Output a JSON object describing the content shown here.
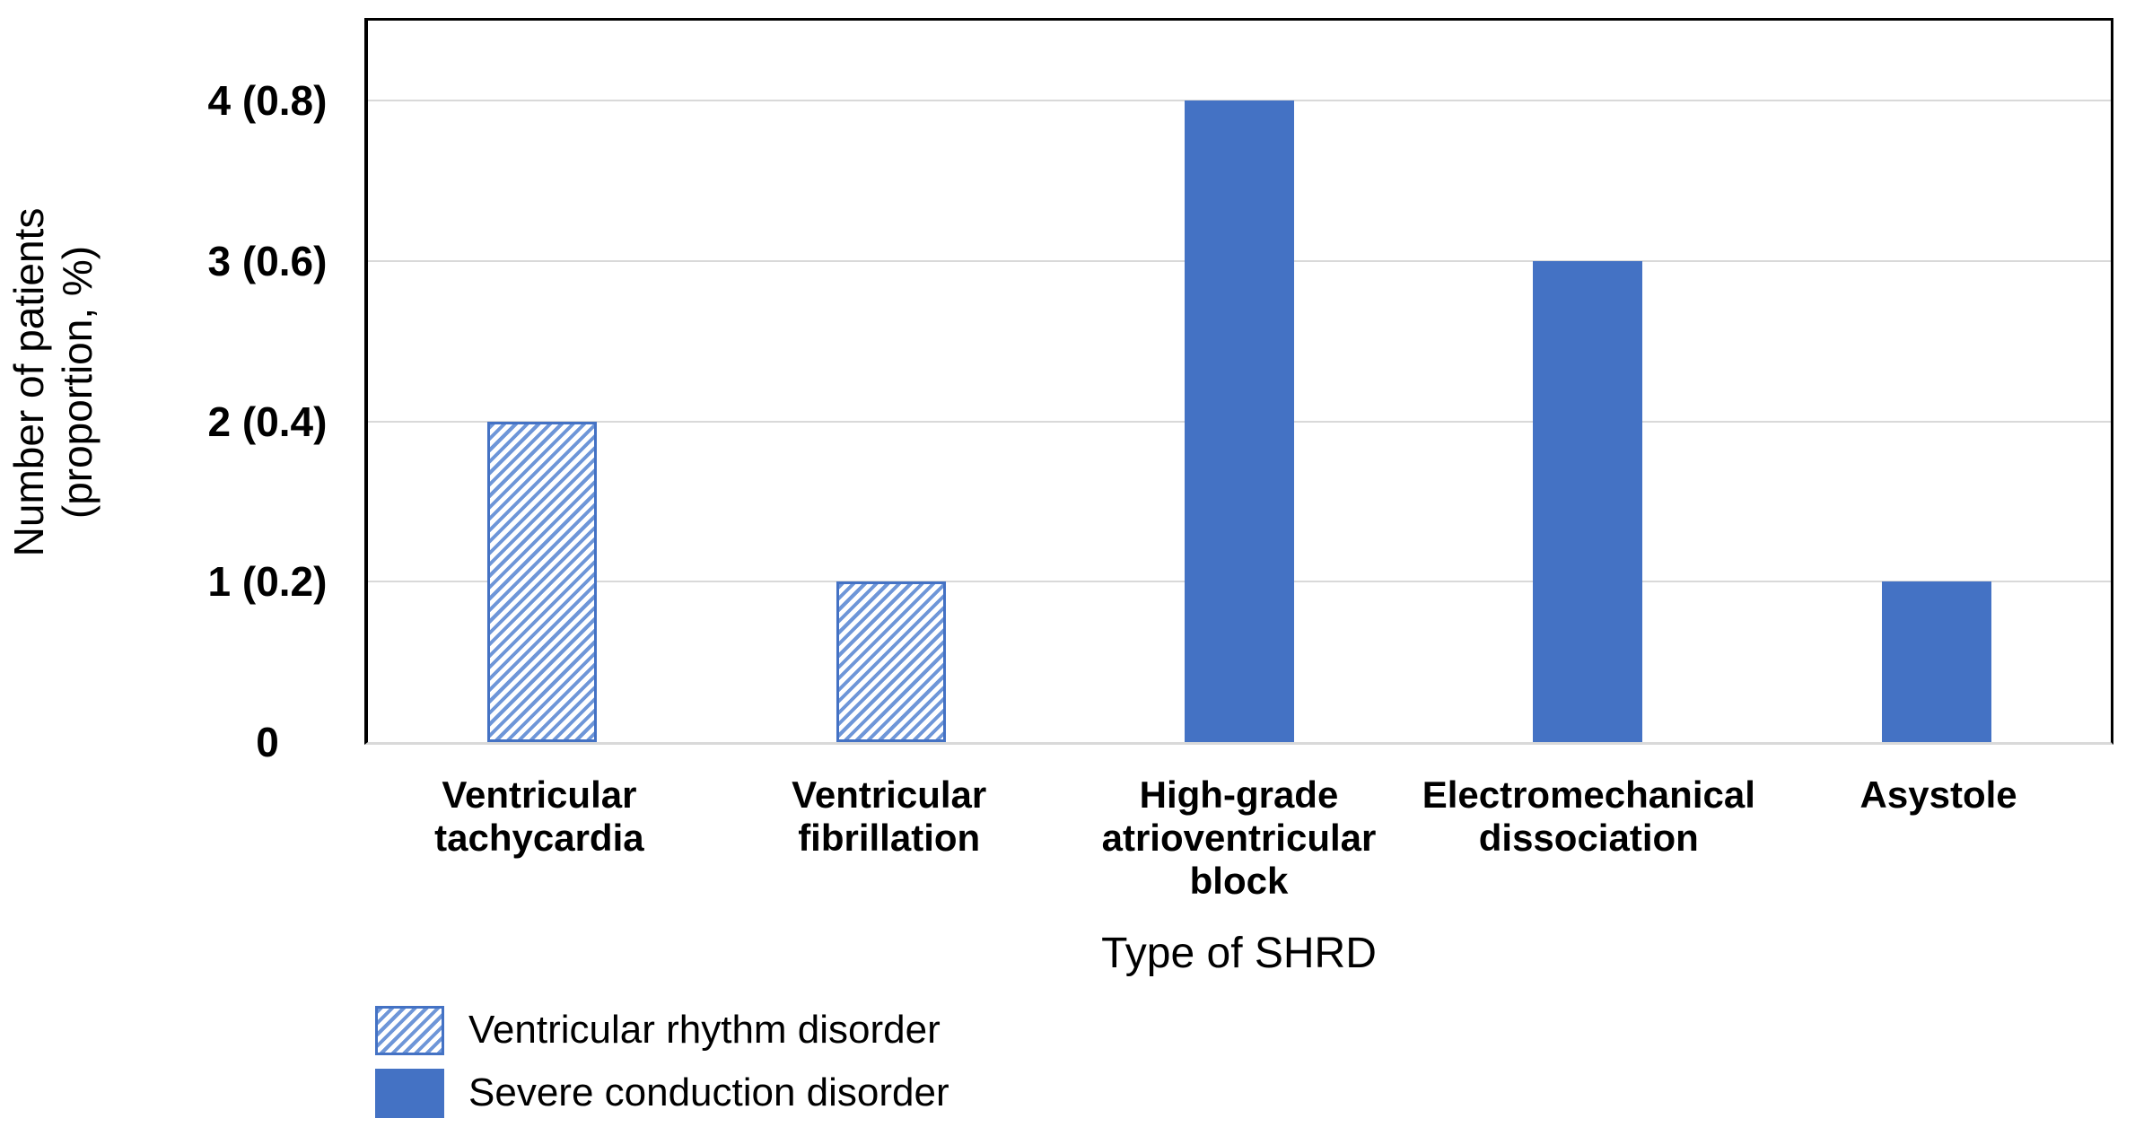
{
  "chart_data": {
    "type": "bar",
    "title": "",
    "xlabel": "Type of SHRD",
    "ylabel_lines": [
      "Number of patients",
      "(proportion, %)"
    ],
    "ylim": [
      0,
      4.5
    ],
    "yticks": [
      {
        "value": 0,
        "label": "0"
      },
      {
        "value": 1,
        "label": "1 (0.2)"
      },
      {
        "value": 2,
        "label": "2 (0.4)"
      },
      {
        "value": 3,
        "label": "3 (0.6)"
      },
      {
        "value": 4,
        "label": "4 (0.8)"
      }
    ],
    "gridlines": [
      1,
      2,
      3,
      4
    ],
    "categories": [
      "Ventricular tachycardia",
      "Ventricular fibrillation",
      "High-grade atrioventricular block",
      "Electromechanical dissociation",
      "Asystole"
    ],
    "bars": [
      {
        "category": "Ventricular tachycardia",
        "label_lines": [
          "Ventricular",
          "tachycardia"
        ],
        "value": 2,
        "proportion": 0.4,
        "series": "Ventricular rhythm disorder",
        "style": "hatched"
      },
      {
        "category": "Ventricular fibrillation",
        "label_lines": [
          "Ventricular",
          "fibrillation"
        ],
        "value": 1,
        "proportion": 0.2,
        "series": "Ventricular rhythm disorder",
        "style": "hatched"
      },
      {
        "category": "High-grade atrioventricular block",
        "label_lines": [
          "High-grade",
          "atrioventricular",
          "block"
        ],
        "value": 4,
        "proportion": 0.8,
        "series": "Severe conduction disorder",
        "style": "solid"
      },
      {
        "category": "Electromechanical dissociation",
        "label_lines": [
          "Electromechanical",
          "dissociation"
        ],
        "value": 3,
        "proportion": 0.6,
        "series": "Severe conduction disorder",
        "style": "solid"
      },
      {
        "category": "Asystole",
        "label_lines": [
          "Asystole"
        ],
        "value": 1,
        "proportion": 0.2,
        "series": "Severe conduction disorder",
        "style": "solid"
      }
    ],
    "legend": [
      {
        "label": "Ventricular rhythm disorder",
        "style": "hatched"
      },
      {
        "label": "Severe conduction disorder",
        "style": "solid"
      }
    ],
    "legend_position": "bottom-left",
    "grid": true,
    "colors": {
      "solid_fill": "#4472C4",
      "hatch_stripe": "#6E96D8",
      "hatch_background": "#FFFFFF",
      "bar_border": "#4472C4",
      "gridline": "#D9D9D9",
      "plot_border": "#000000",
      "baseline": "#D9D9D9",
      "text": "#000000"
    }
  }
}
